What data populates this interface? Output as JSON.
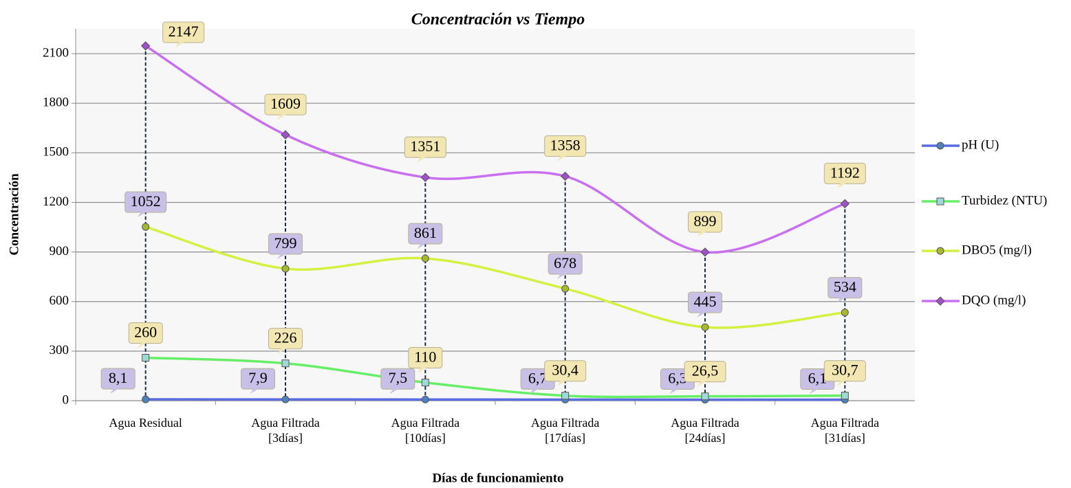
{
  "chart_data": {
    "type": "line",
    "title": "Concentración vs Tiempo",
    "x_label": "Días de funcionamiento",
    "y_label": "Concentración",
    "categories": [
      "Agua Residual",
      "Agua Filtrada [3días]",
      "Agua Filtrada [10días]",
      "Agua Filtrada [17días]",
      "Agua Filtrada [24días]",
      "Agua Filtrada [31días]"
    ],
    "series": [
      {
        "name": "pH (U)",
        "color": "#5b6be0",
        "marker_color": "#4f81bd",
        "marker": "circle",
        "values": [
          8.1,
          7.9,
          7.5,
          6.7,
          6.3,
          6.1
        ],
        "value_labels": [
          "8,1",
          "7,9",
          "7,5",
          "6,7",
          "6,3",
          "6,1"
        ]
      },
      {
        "name": "Turbidez (NTU)",
        "color": "#66ee66",
        "marker_color": "#9fd8d8",
        "marker": "square",
        "values": [
          260,
          226,
          110,
          30.4,
          26.5,
          30.7
        ],
        "value_labels": [
          "260",
          "226",
          "110",
          "30,4",
          "26,5",
          "30,7"
        ]
      },
      {
        "name": "DBO5 (mg/l)",
        "color": "#d4f040",
        "marker_color": "#a8b830",
        "marker": "circle",
        "values": [
          1052,
          799,
          861,
          678,
          445,
          534
        ]
      },
      {
        "name": "DQO (mg/l)",
        "color": "#c870f0",
        "marker_color": "#a050c8",
        "marker": "diamond",
        "values": [
          2147,
          1609,
          1351,
          1358,
          899,
          1192
        ]
      }
    ],
    "ylim": [
      0,
      2250
    ],
    "yticks": [
      0,
      300,
      600,
      900,
      1200,
      1500,
      1800,
      2100
    ],
    "grid": true,
    "legend": "right"
  }
}
